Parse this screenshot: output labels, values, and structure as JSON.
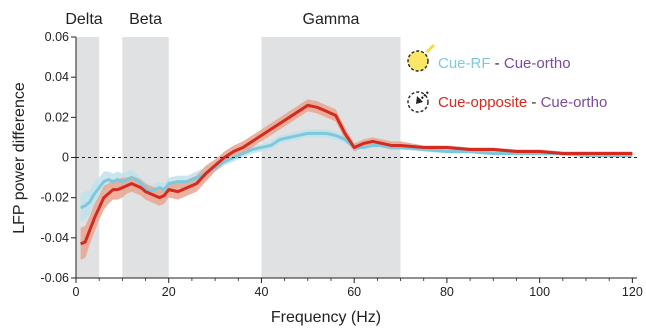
{
  "chart_data": {
    "type": "line",
    "xlabel": "Frequency (Hz)",
    "ylabel": "LFP power difference",
    "xlim": [
      0,
      121
    ],
    "ylim": [
      -0.06,
      0.06
    ],
    "x_ticks": [
      0,
      20,
      40,
      60,
      80,
      100,
      120
    ],
    "y_ticks": [
      -0.06,
      -0.04,
      -0.02,
      0,
      0.02,
      0.04,
      0.06
    ],
    "x_tick_labels": [
      "0",
      "20",
      "40",
      "60",
      "80",
      "100",
      "120"
    ],
    "y_tick_labels": [
      "-0.06",
      "-0.04",
      "-0.02",
      "0",
      "0.02",
      "0.04",
      "0.06"
    ],
    "zero_line": "dashed",
    "grid": false,
    "bands": [
      {
        "label": "Delta",
        "x0": 0,
        "x1": 5
      },
      {
        "label": "Beta",
        "x0": 10,
        "x1": 20
      },
      {
        "label": "Gamma",
        "x0": 40,
        "x1": 70
      }
    ],
    "legend": {
      "placement": "top-right",
      "entries": [
        {
          "icon": "attention-cue-rf-icon",
          "parts": [
            {
              "text": "Cue-RF",
              "color": "#7ec8dc"
            },
            {
              "text": " - ",
              "color": "#222222"
            },
            {
              "text": "Cue-ortho",
              "color": "#7a4a9c"
            }
          ]
        },
        {
          "icon": "attention-cue-opposite-icon",
          "parts": [
            {
              "text": "Cue-opposite",
              "color": "#d42a20"
            },
            {
              "text": " - ",
              "color": "#222222"
            },
            {
              "text": "Cue-ortho",
              "color": "#7a4a9c"
            }
          ]
        }
      ]
    },
    "series": [
      {
        "key": "cue_rf",
        "color": "#7ec8dc",
        "band_color": "#bfe2ec",
        "x": [
          1,
          2,
          3,
          4,
          5,
          6,
          7,
          8,
          9,
          10,
          11,
          12,
          13,
          14,
          15,
          16,
          17,
          18,
          19,
          20,
          22,
          24,
          26,
          28,
          30,
          32,
          34,
          36,
          38,
          40,
          42,
          44,
          46,
          48,
          50,
          52,
          54,
          56,
          58,
          60,
          62,
          64,
          66,
          68,
          70,
          75,
          80,
          85,
          90,
          95,
          100,
          105,
          110,
          115,
          120
        ],
        "y": [
          -0.025,
          -0.024,
          -0.022,
          -0.018,
          -0.015,
          -0.012,
          -0.011,
          -0.012,
          -0.011,
          -0.012,
          -0.011,
          -0.01,
          -0.011,
          -0.013,
          -0.015,
          -0.017,
          -0.016,
          -0.015,
          -0.016,
          -0.013,
          -0.012,
          -0.012,
          -0.01,
          -0.008,
          -0.005,
          -0.002,
          0.0,
          0.002,
          0.004,
          0.005,
          0.006,
          0.009,
          0.01,
          0.011,
          0.012,
          0.012,
          0.012,
          0.011,
          0.009,
          0.005,
          0.005,
          0.006,
          0.006,
          0.005,
          0.005,
          0.004,
          0.003,
          0.003,
          0.002,
          0.002,
          0.002,
          0.002,
          0.001,
          0.001,
          0.001
        ],
        "err": [
          0.007,
          0.007,
          0.006,
          0.006,
          0.005,
          0.005,
          0.004,
          0.004,
          0.004,
          0.004,
          0.004,
          0.004,
          0.003,
          0.003,
          0.003,
          0.003,
          0.003,
          0.003,
          0.003,
          0.003,
          0.003,
          0.003,
          0.003,
          0.003,
          0.002,
          0.002,
          0.002,
          0.002,
          0.002,
          0.002,
          0.002,
          0.002,
          0.002,
          0.002,
          0.002,
          0.002,
          0.002,
          0.002,
          0.002,
          0.001,
          0.001,
          0.001,
          0.001,
          0.001,
          0.001,
          0.001,
          0.001,
          0.001,
          0.001,
          0.001,
          0.001,
          0.001,
          0.001,
          0.001,
          0.001
        ]
      },
      {
        "key": "cue_opposite",
        "color": "#d42a20",
        "band_color": "#e9a48e",
        "x": [
          1,
          2,
          3,
          4,
          5,
          6,
          7,
          8,
          9,
          10,
          11,
          12,
          13,
          14,
          15,
          16,
          17,
          18,
          19,
          20,
          22,
          24,
          26,
          28,
          30,
          32,
          34,
          36,
          38,
          40,
          42,
          44,
          46,
          48,
          50,
          52,
          54,
          56,
          58,
          60,
          62,
          64,
          66,
          68,
          70,
          75,
          80,
          85,
          90,
          95,
          100,
          105,
          110,
          115,
          120
        ],
        "y": [
          -0.043,
          -0.042,
          -0.036,
          -0.03,
          -0.025,
          -0.02,
          -0.018,
          -0.016,
          -0.016,
          -0.015,
          -0.014,
          -0.013,
          -0.014,
          -0.015,
          -0.017,
          -0.018,
          -0.019,
          -0.02,
          -0.019,
          -0.016,
          -0.017,
          -0.015,
          -0.013,
          -0.008,
          -0.004,
          0.0,
          0.003,
          0.005,
          0.008,
          0.011,
          0.014,
          0.017,
          0.02,
          0.023,
          0.026,
          0.025,
          0.023,
          0.021,
          0.012,
          0.005,
          0.007,
          0.008,
          0.007,
          0.006,
          0.006,
          0.005,
          0.005,
          0.004,
          0.004,
          0.003,
          0.003,
          0.002,
          0.002,
          0.002,
          0.002
        ],
        "err": [
          0.008,
          0.008,
          0.007,
          0.007,
          0.006,
          0.006,
          0.005,
          0.005,
          0.005,
          0.005,
          0.004,
          0.004,
          0.004,
          0.004,
          0.004,
          0.004,
          0.004,
          0.004,
          0.004,
          0.004,
          0.004,
          0.004,
          0.004,
          0.004,
          0.003,
          0.003,
          0.003,
          0.003,
          0.003,
          0.003,
          0.003,
          0.003,
          0.003,
          0.003,
          0.003,
          0.003,
          0.003,
          0.003,
          0.003,
          0.002,
          0.002,
          0.002,
          0.002,
          0.002,
          0.002,
          0.001,
          0.001,
          0.001,
          0.001,
          0.001,
          0.001,
          0.001,
          0.001,
          0.001,
          0.001
        ]
      }
    ]
  }
}
